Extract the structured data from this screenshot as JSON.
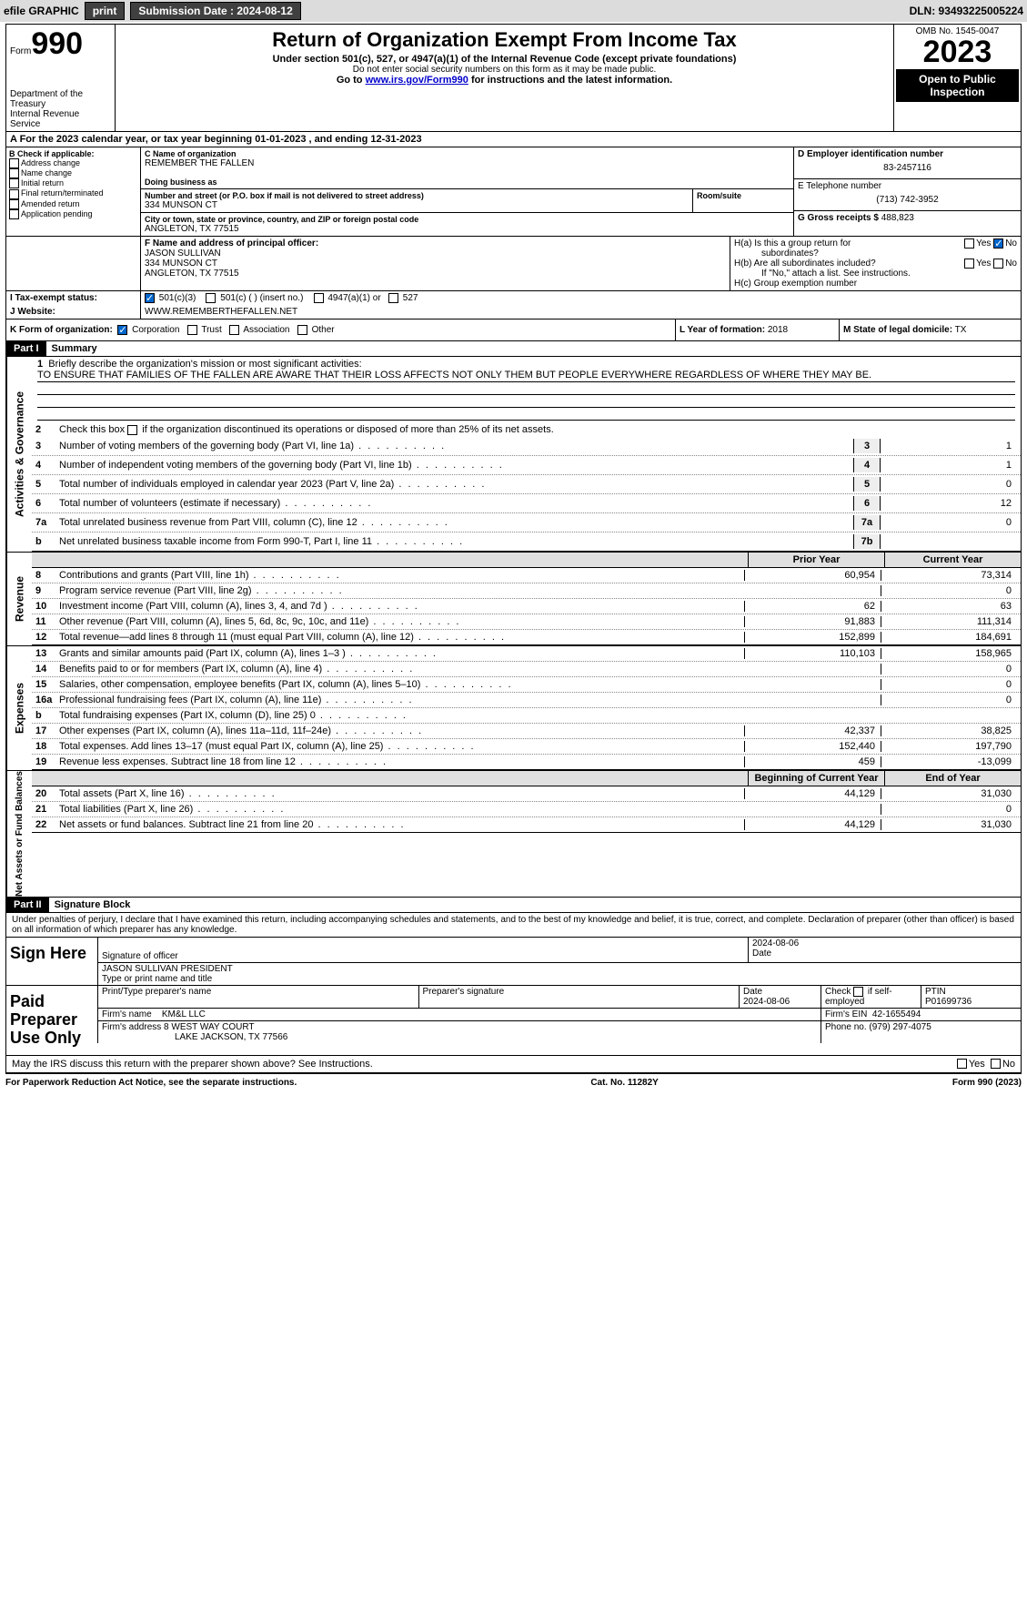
{
  "toolbar": {
    "efile": "efile GRAPHIC",
    "print": "print",
    "sub_label": "Submission Date : 2024-08-12",
    "dln": "DLN: 93493225005224"
  },
  "header": {
    "form": "Form",
    "form_no": "990",
    "dept": "Department of the Treasury",
    "irs": "Internal Revenue Service",
    "title": "Return of Organization Exempt From Income Tax",
    "sub1": "Under section 501(c), 527, or 4947(a)(1) of the Internal Revenue Code (except private foundations)",
    "sub2": "Do not enter social security numbers on this form as it may be made public.",
    "sub3_a": "Go to ",
    "sub3_link": "www.irs.gov/Form990",
    "sub3_b": " for instructions and the latest information.",
    "omb": "OMB No. 1545-0047",
    "year": "2023",
    "pub": "Open to Public Inspection"
  },
  "row_a": "A For the 2023 calendar year, or tax year beginning 01-01-2023   , and ending 12-31-2023",
  "box_b": {
    "title": "B Check if applicable:",
    "items": [
      "Address change",
      "Name change",
      "Initial return",
      "Final return/terminated",
      "Amended return",
      "Application pending"
    ]
  },
  "box_c": {
    "name_lbl": "C Name of organization",
    "name": "REMEMBER THE FALLEN",
    "dba_lbl": "Doing business as",
    "addr_lbl": "Number and street (or P.O. box if mail is not delivered to street address)",
    "room_lbl": "Room/suite",
    "addr": "334 MUNSON CT",
    "city_lbl": "City or town, state or province, country, and ZIP or foreign postal code",
    "city": "ANGLETON, TX  77515"
  },
  "box_d": {
    "ein_lbl": "D Employer identification number",
    "ein": "83-2457116",
    "tel_lbl": "E Telephone number",
    "tel": "(713) 742-3952",
    "gross_lbl": "G Gross receipts $",
    "gross": "488,823"
  },
  "box_f": {
    "lbl": "F Name and address of principal officer:",
    "name": "JASON SULLIVAN",
    "addr1": "334 MUNSON CT",
    "addr2": "ANGLETON, TX  77515"
  },
  "box_h": {
    "ha": "H(a)  Is this a group return for",
    "ha2": "subordinates?",
    "hb": "H(b)  Are all subordinates included?",
    "hb2": "If \"No,\" attach a list. See instructions.",
    "hc": "H(c)  Group exemption number",
    "yes": "Yes",
    "no": "No"
  },
  "row_i": {
    "lbl": "I   Tax-exempt status:",
    "o1": "501(c)(3)",
    "o2": "501(c) (  ) (insert no.)",
    "o3": "4947(a)(1) or",
    "o4": "527"
  },
  "row_j": {
    "lbl": "J   Website:",
    "val": "WWW.REMEMBERTHEFALLEN.NET"
  },
  "row_k": {
    "lbl": "K Form of organization:",
    "o1": "Corporation",
    "o2": "Trust",
    "o3": "Association",
    "o4": "Other",
    "l_lbl": "L Year of formation:",
    "l_val": "2018",
    "m_lbl": "M State of legal domicile:",
    "m_val": "TX"
  },
  "part1": {
    "hdr": "Part I",
    "title": "Summary",
    "side_ag": "Activities & Governance",
    "side_rev": "Revenue",
    "side_exp": "Expenses",
    "side_net": "Net Assets or Fund Balances",
    "q1": "Briefly describe the organization's mission or most significant activities:",
    "mission": "TO ENSURE THAT FAMILIES OF THE FALLEN ARE AWARE THAT THEIR LOSS AFFECTS NOT ONLY THEM BUT PEOPLE EVERYWHERE REGARDLESS OF WHERE THEY MAY BE.",
    "q2": "Check this box        if the organization discontinued its operations or disposed of more than 25% of its net assets.",
    "lines_ag": [
      {
        "n": "3",
        "t": "Number of voting members of the governing body (Part VI, line 1a)",
        "b": "3",
        "v": "1"
      },
      {
        "n": "4",
        "t": "Number of independent voting members of the governing body (Part VI, line 1b)",
        "b": "4",
        "v": "1"
      },
      {
        "n": "5",
        "t": "Total number of individuals employed in calendar year 2023 (Part V, line 2a)",
        "b": "5",
        "v": "0"
      },
      {
        "n": "6",
        "t": "Total number of volunteers (estimate if necessary)",
        "b": "6",
        "v": "12"
      },
      {
        "n": "7a",
        "t": "Total unrelated business revenue from Part VIII, column (C), line 12",
        "b": "7a",
        "v": "0"
      },
      {
        "n": "b",
        "t": "Net unrelated business taxable income from Form 990-T, Part I, line 11",
        "b": "7b",
        "v": ""
      }
    ],
    "col_prior": "Prior Year",
    "col_curr": "Current Year",
    "lines_rev": [
      {
        "n": "8",
        "t": "Contributions and grants (Part VIII, line 1h)",
        "p": "60,954",
        "c": "73,314"
      },
      {
        "n": "9",
        "t": "Program service revenue (Part VIII, line 2g)",
        "p": "",
        "c": "0"
      },
      {
        "n": "10",
        "t": "Investment income (Part VIII, column (A), lines 3, 4, and 7d )",
        "p": "62",
        "c": "63"
      },
      {
        "n": "11",
        "t": "Other revenue (Part VIII, column (A), lines 5, 6d, 8c, 9c, 10c, and 11e)",
        "p": "91,883",
        "c": "111,314"
      },
      {
        "n": "12",
        "t": "Total revenue—add lines 8 through 11 (must equal Part VIII, column (A), line 12)",
        "p": "152,899",
        "c": "184,691"
      }
    ],
    "lines_exp": [
      {
        "n": "13",
        "t": "Grants and similar amounts paid (Part IX, column (A), lines 1–3 )",
        "p": "110,103",
        "c": "158,965"
      },
      {
        "n": "14",
        "t": "Benefits paid to or for members (Part IX, column (A), line 4)",
        "p": "",
        "c": "0"
      },
      {
        "n": "15",
        "t": "Salaries, other compensation, employee benefits (Part IX, column (A), lines 5–10)",
        "p": "",
        "c": "0"
      },
      {
        "n": "16a",
        "t": "Professional fundraising fees (Part IX, column (A), line 11e)",
        "p": "",
        "c": "0"
      },
      {
        "n": "b",
        "t": "Total fundraising expenses (Part IX, column (D), line 25) 0",
        "p": "",
        "c": "",
        "shade": true
      },
      {
        "n": "17",
        "t": "Other expenses (Part IX, column (A), lines 11a–11d, 11f–24e)",
        "p": "42,337",
        "c": "38,825"
      },
      {
        "n": "18",
        "t": "Total expenses. Add lines 13–17 (must equal Part IX, column (A), line 25)",
        "p": "152,440",
        "c": "197,790"
      },
      {
        "n": "19",
        "t": "Revenue less expenses. Subtract line 18 from line 12",
        "p": "459",
        "c": "-13,099"
      }
    ],
    "col_beg": "Beginning of Current Year",
    "col_end": "End of Year",
    "lines_net": [
      {
        "n": "20",
        "t": "Total assets (Part X, line 16)",
        "p": "44,129",
        "c": "31,030"
      },
      {
        "n": "21",
        "t": "Total liabilities (Part X, line 26)",
        "p": "",
        "c": "0"
      },
      {
        "n": "22",
        "t": "Net assets or fund balances. Subtract line 21 from line 20",
        "p": "44,129",
        "c": "31,030"
      }
    ]
  },
  "part2": {
    "hdr": "Part II",
    "title": "Signature Block",
    "decl": "Under penalties of perjury, I declare that I have examined this return, including accompanying schedules and statements, and to the best of my knowledge and belief, it is true, correct, and complete. Declaration of preparer (other than officer) is based on all information of which preparer has any knowledge.",
    "sign_here": "Sign Here",
    "sig_lbl": "Signature of officer",
    "sig_date": "2024-08-06",
    "date_lbl": "Date",
    "officer": "JASON SULLIVAN  PRESIDENT",
    "type_lbl": "Type or print name and title",
    "paid": "Paid Preparer Use Only",
    "prep_name_lbl": "Print/Type preparer's name",
    "prep_sig_lbl": "Preparer's signature",
    "prep_date": "2024-08-06",
    "check_lbl": "Check         if self-employed",
    "ptin_lbl": "PTIN",
    "ptin": "P01699736",
    "firm_name_lbl": "Firm's name",
    "firm_name": "KM&L LLC",
    "firm_ein_lbl": "Firm's EIN",
    "firm_ein": "42-1655494",
    "firm_addr_lbl": "Firm's address",
    "firm_addr1": "8 WEST WAY COURT",
    "firm_addr2": "LAKE JACKSON, TX  77566",
    "phone_lbl": "Phone no.",
    "phone": "(979) 297-4075",
    "discuss": "May the IRS discuss this return with the preparer shown above? See Instructions."
  },
  "footer": {
    "l": "For Paperwork Reduction Act Notice, see the separate instructions.",
    "c": "Cat. No. 11282Y",
    "r": "Form 990 (2023)"
  }
}
